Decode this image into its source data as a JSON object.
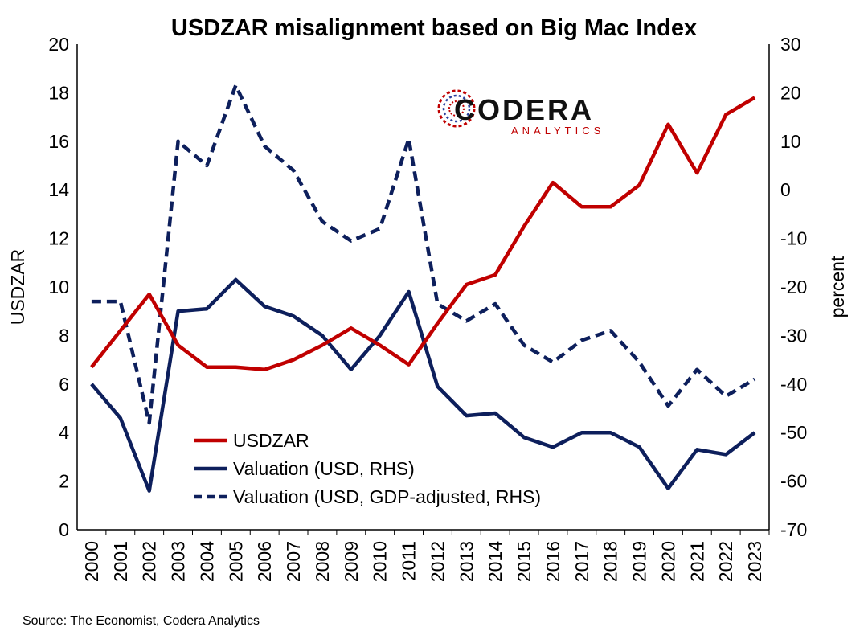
{
  "chart_data": {
    "type": "line",
    "title": "USDZAR misalignment based on Big Mac Index",
    "ylabel_left": "USDZAR",
    "ylabel_right": "percent",
    "ylim_left": [
      0,
      20
    ],
    "ylim_right": [
      -70,
      30
    ],
    "yticks_left": [
      0,
      2,
      4,
      6,
      8,
      10,
      12,
      14,
      16,
      18,
      20
    ],
    "yticks_right": [
      -70,
      -60,
      -50,
      -40,
      -30,
      -20,
      -10,
      0,
      10,
      20,
      30
    ],
    "categories": [
      "2000",
      "2001",
      "2002",
      "2003",
      "2004",
      "2005",
      "2006",
      "2007",
      "2008",
      "2009",
      "2010",
      "2011",
      "2012",
      "2013",
      "2014",
      "2015",
      "2016",
      "2017",
      "2018",
      "2019",
      "2020",
      "2021",
      "2022",
      "2023"
    ],
    "grid": false,
    "legend_position": "bottom-left",
    "series": [
      {
        "name": "USDZAR",
        "axis": "left",
        "color": "#c00000",
        "style": "solid",
        "values": [
          6.7,
          8.2,
          9.7,
          7.6,
          6.7,
          6.7,
          6.6,
          7.0,
          7.6,
          8.3,
          7.6,
          6.8,
          8.5,
          10.1,
          10.5,
          12.5,
          14.3,
          13.3,
          13.3,
          14.2,
          16.7,
          14.7,
          17.1,
          17.8
        ]
      },
      {
        "name": "Valuation (USD, RHS)",
        "axis": "right",
        "color": "#0d1f5c",
        "style": "solid",
        "values": [
          -40,
          -47,
          -62,
          -25,
          -24.5,
          -18.5,
          -24,
          -26,
          -30,
          -37,
          -30,
          -21,
          -40.5,
          -46.5,
          -46,
          -51,
          -53,
          -50,
          -50,
          -53,
          -61.5,
          -53.5,
          -54.5,
          -50
        ]
      },
      {
        "name": "Valuation (USD, GDP-adjusted, RHS)",
        "axis": "right",
        "color": "#0d1f5c",
        "style": "dashed",
        "values": [
          -23,
          -23,
          -48,
          10,
          5,
          21.5,
          9,
          4,
          -6.5,
          -10.5,
          -8,
          10.5,
          -23.5,
          -27,
          -23.5,
          -32,
          -35.5,
          -31,
          -29,
          -35.5,
          -44.5,
          -37,
          -42.5,
          -39
        ]
      }
    ],
    "source": "Source: The Economist, Codera Analytics"
  },
  "logo": {
    "name": "CODERA",
    "tagline": "ANALYTICS"
  }
}
